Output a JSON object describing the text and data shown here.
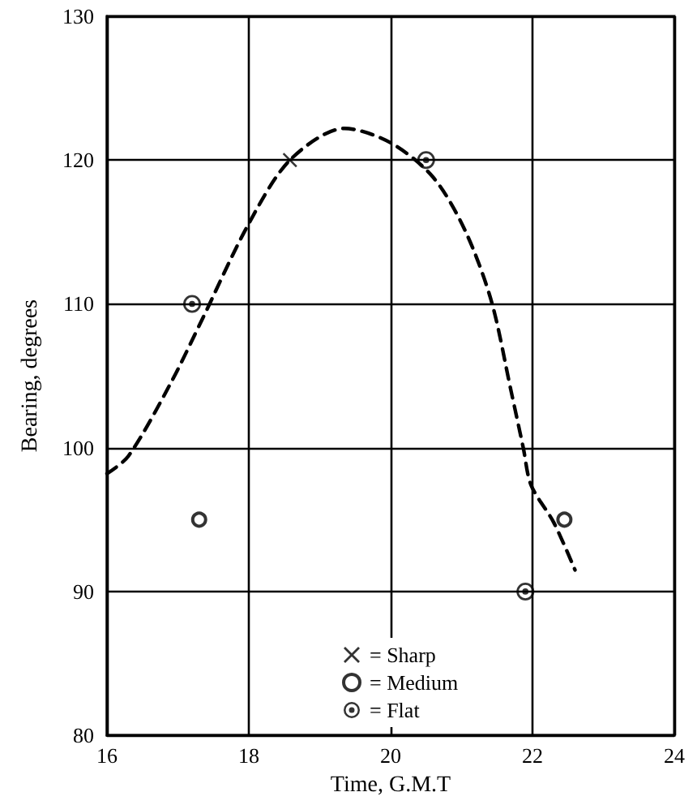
{
  "chart_data": {
    "type": "scatter",
    "xlabel": "Time, G.M.T",
    "ylabel": "Bearing, degrees",
    "xlim": [
      16,
      24
    ],
    "xticks": [
      16,
      18,
      20,
      22,
      24
    ],
    "ylim": [
      80,
      130
    ],
    "yticks": [
      80,
      90,
      100,
      110,
      120,
      130
    ],
    "grid": true,
    "legend": "bottom",
    "series": [
      {
        "name": "= Sharp",
        "color": "#000000",
        "marker": "cross",
        "x": [
          18.58
        ],
        "values": [
          120
        ]
      },
      {
        "name": "= Medium",
        "color": "#000000",
        "marker": "circle",
        "x": [
          17.3,
          22.45
        ],
        "values": [
          95,
          95
        ]
      },
      {
        "name": "= Flat",
        "color": "#000000",
        "marker": "circle-dot",
        "x": [
          17.2,
          20.5,
          21.9
        ],
        "values": [
          110,
          120,
          90
        ]
      },
      {
        "type": "line",
        "color": "#000000",
        "marker": "none",
        "line_style": "dashed",
        "x": [
          16.0,
          16.3,
          16.9,
          17.35,
          17.98,
          18.58,
          19.35,
          20.0,
          20.6,
          21.05,
          21.42,
          21.7,
          21.87,
          21.98,
          22.3,
          22.6
        ],
        "values": [
          98.2,
          99.4,
          104.5,
          109,
          115.4,
          120,
          122.2,
          121.2,
          118.8,
          115.1,
          110.2,
          103.9,
          100,
          97.4,
          94.8,
          91.5
        ]
      }
    ]
  }
}
